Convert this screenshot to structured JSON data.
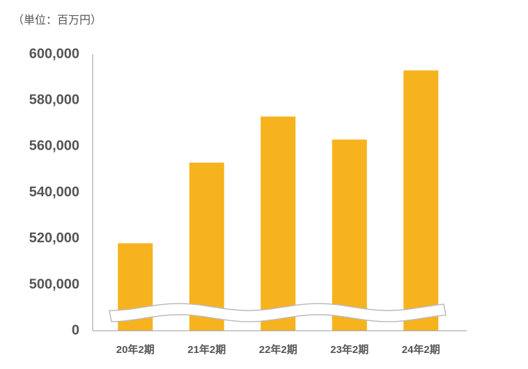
{
  "chart_data": {
    "type": "bar",
    "unit_label": "（単位：百万円）",
    "categories": [
      "20年2期",
      "21年2期",
      "22年2期",
      "23年2期",
      "24年2期"
    ],
    "values": [
      518000,
      553000,
      573000,
      563000,
      593000
    ],
    "color": "#f6b31e",
    "ylim": [
      0,
      600000
    ],
    "axis_break": [
      0,
      500000
    ],
    "yticks": [
      {
        "value": 0,
        "label": "0"
      },
      {
        "value": 500000,
        "label": "500,000"
      },
      {
        "value": 520000,
        "label": "520,000"
      },
      {
        "value": 540000,
        "label": "540,000"
      },
      {
        "value": 560000,
        "label": "560,000"
      },
      {
        "value": 580000,
        "label": "580,000"
      },
      {
        "value": 600000,
        "label": "600,000"
      }
    ]
  }
}
